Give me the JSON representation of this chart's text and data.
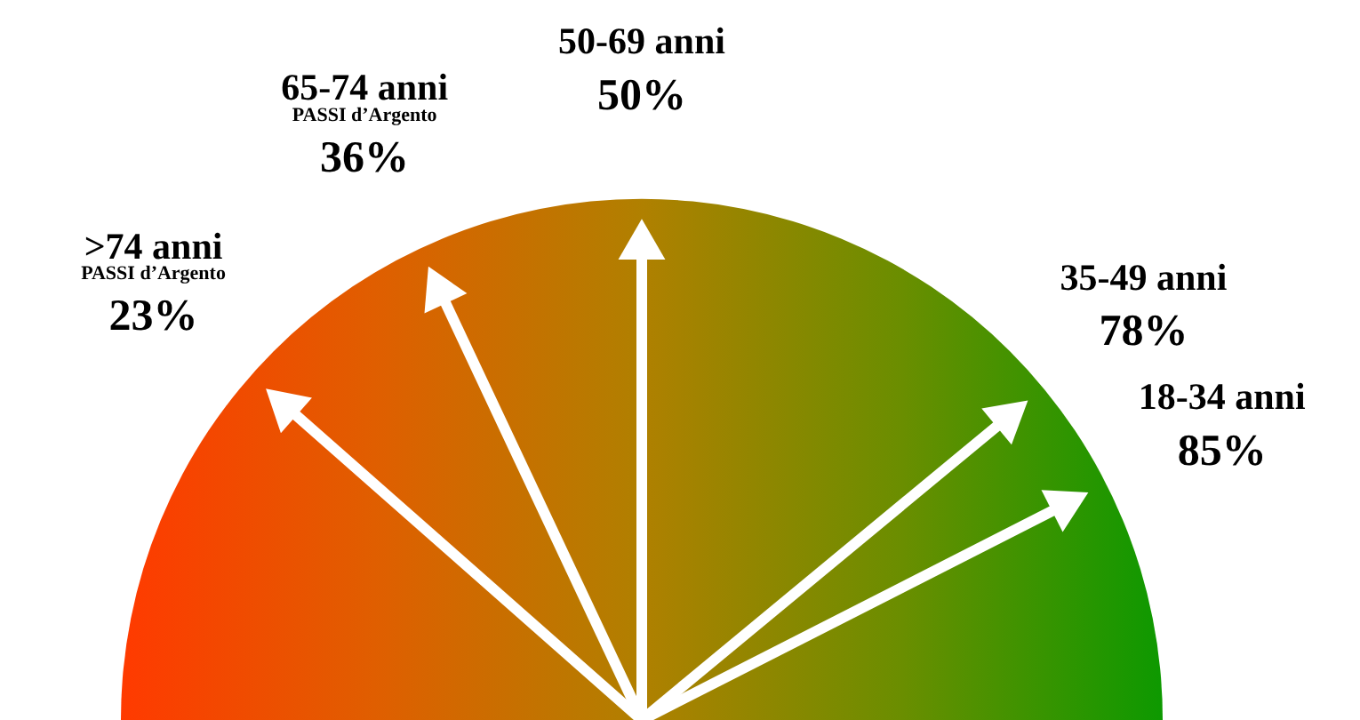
{
  "chart_data": {
    "type": "other",
    "categories": [
      ">74 anni",
      "65-74 anni",
      "50-69 anni",
      "35-49 anni",
      "18-34 anni"
    ],
    "values": [
      23,
      36,
      50,
      78,
      85
    ],
    "value_labels": [
      "23%",
      "36%",
      "50%",
      "78%",
      "85%"
    ],
    "colors": [
      "#ff3a00",
      "#df5f00",
      "#b08000",
      "#6a8e00",
      "#0d9900"
    ],
    "annotations": [
      {
        "text": "PASSI d’Argento",
        "x": ">74 anni"
      },
      {
        "text": "PASSI d’Argento",
        "x": "65-74 anni"
      }
    ]
  }
}
